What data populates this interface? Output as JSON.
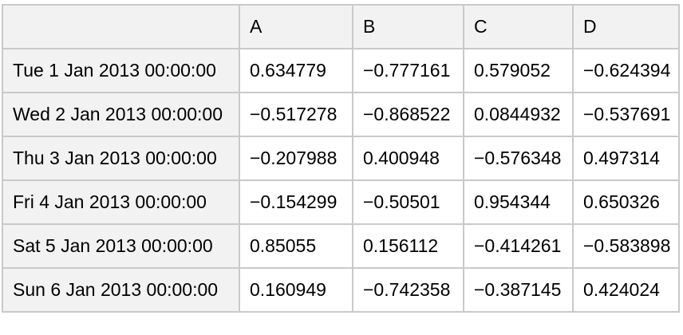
{
  "colors": {
    "header_background": "#f2f2f2",
    "cell_background": "#ffffff",
    "border": "#c9c9c9",
    "text": "#000000"
  },
  "table": {
    "corner_label": "",
    "columns": [
      "A",
      "B",
      "C",
      "D"
    ],
    "rows": [
      {
        "label": "Tue 1 Jan 2013 00:00:00",
        "values": [
          "0.634779",
          "−0.777161",
          "0.579052",
          "−0.624394"
        ]
      },
      {
        "label": "Wed 2 Jan 2013 00:00:00",
        "values": [
          "−0.517278",
          "−0.868522",
          "0.0844932",
          "−0.537691"
        ]
      },
      {
        "label": "Thu 3 Jan 2013 00:00:00",
        "values": [
          "−0.207988",
          "0.400948",
          "−0.576348",
          "0.497314"
        ]
      },
      {
        "label": "Fri 4 Jan 2013 00:00:00",
        "values": [
          "−0.154299",
          "−0.50501",
          "0.954344",
          "0.650326"
        ]
      },
      {
        "label": "Sat 5 Jan 2013 00:00:00",
        "values": [
          "0.85055",
          "0.156112",
          "−0.414261",
          "−0.583898"
        ]
      },
      {
        "label": "Sun 6 Jan 2013 00:00:00",
        "values": [
          "0.160949",
          "−0.742358",
          "−0.387145",
          "0.424024"
        ]
      }
    ]
  },
  "chart_data": {
    "type": "table",
    "title": "",
    "columns": [
      "A",
      "B",
      "C",
      "D"
    ],
    "index": [
      "Tue 1 Jan 2013 00:00:00",
      "Wed 2 Jan 2013 00:00:00",
      "Thu 3 Jan 2013 00:00:00",
      "Fri 4 Jan 2013 00:00:00",
      "Sat 5 Jan 2013 00:00:00",
      "Sun 6 Jan 2013 00:00:00"
    ],
    "values": [
      [
        0.634779,
        -0.777161,
        0.579052,
        -0.624394
      ],
      [
        -0.517278,
        -0.868522,
        0.0844932,
        -0.537691
      ],
      [
        -0.207988,
        0.400948,
        -0.576348,
        0.497314
      ],
      [
        -0.154299,
        -0.50501,
        0.954344,
        0.650326
      ],
      [
        0.85055,
        0.156112,
        -0.414261,
        -0.583898
      ],
      [
        0.160949,
        -0.742358,
        -0.387145,
        0.424024
      ]
    ]
  }
}
